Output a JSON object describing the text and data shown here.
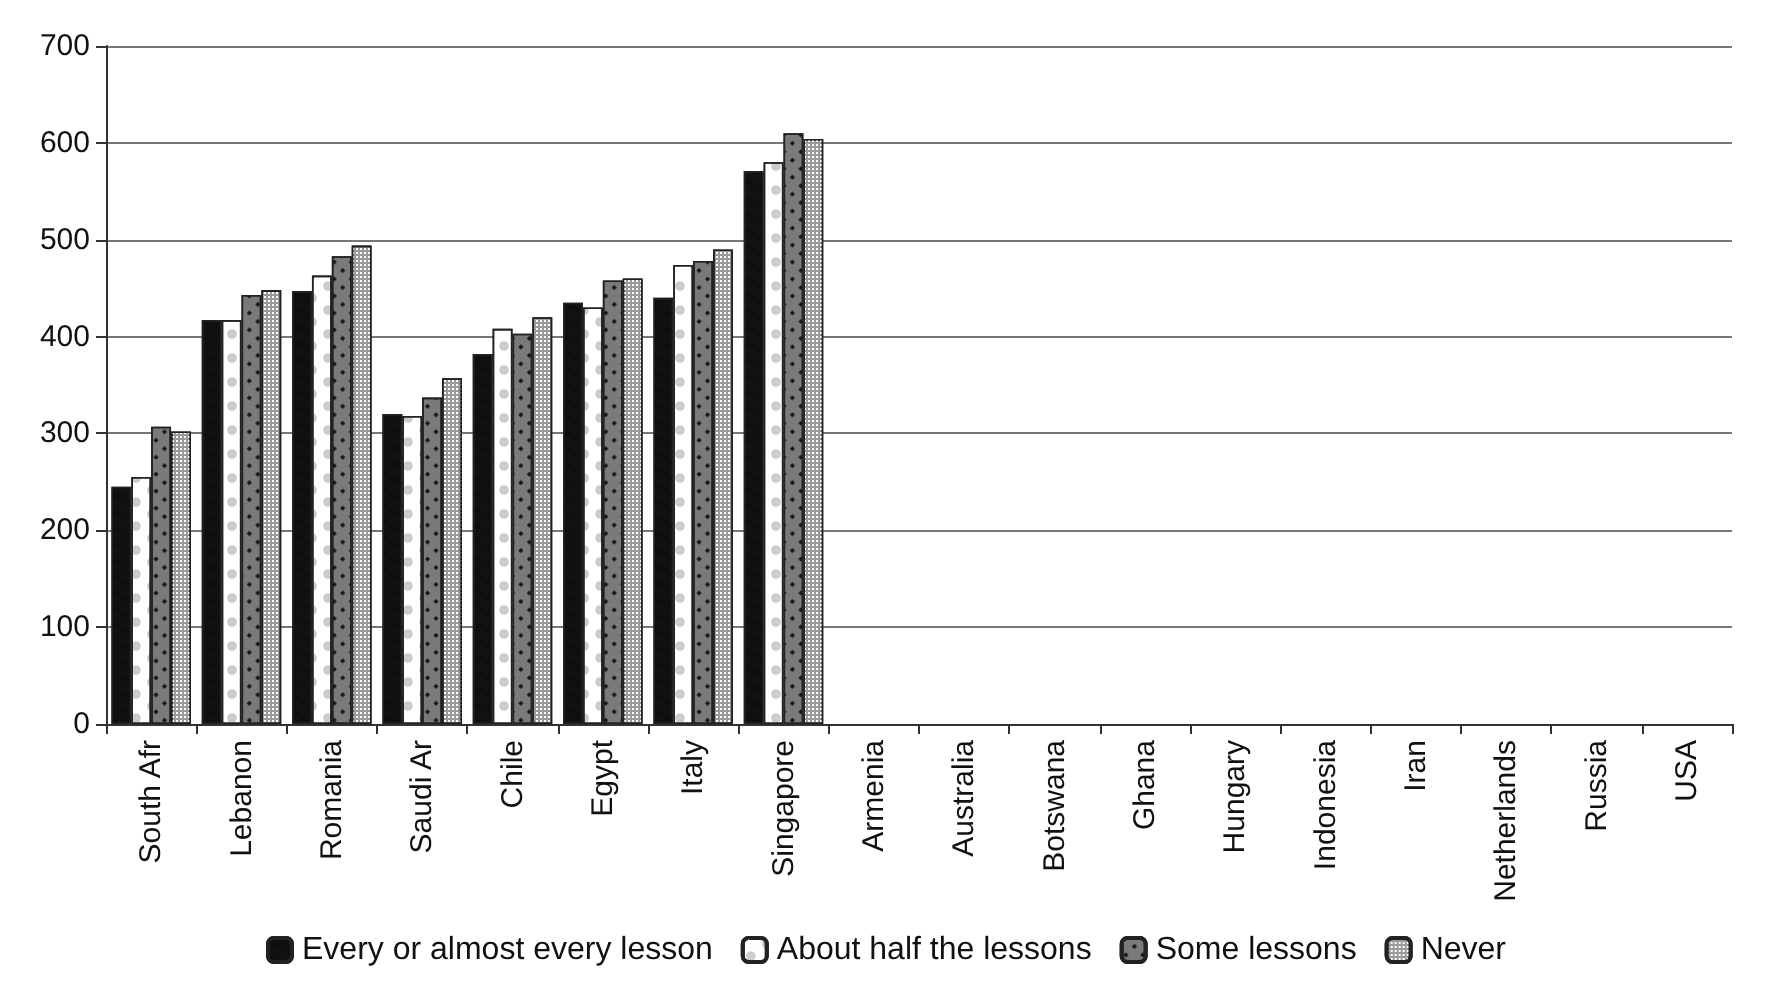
{
  "chart_data": {
    "type": "bar",
    "categories": [
      "South Afr",
      "Lebanon",
      "Romania",
      "Saudi Ar",
      "Chile",
      "Egypt",
      "Italy",
      "Singapore",
      "Armenia",
      "Australia",
      "Botswana",
      "Ghana",
      "Hungary",
      "Indonesia",
      "Iran",
      "Netherlands",
      "Russia",
      "USA"
    ],
    "series": [
      {
        "name": "Every or almost every lesson",
        "color": "#111111",
        "values": [
          245,
          417,
          447,
          320,
          382,
          435,
          440,
          571,
          null,
          null,
          null,
          null,
          null,
          null,
          null,
          null,
          null,
          null
        ]
      },
      {
        "name": "About half the lessons",
        "color": "#ffffff",
        "values": [
          255,
          417,
          463,
          318,
          408,
          430,
          474,
          580,
          null,
          null,
          null,
          null,
          null,
          null,
          null,
          null,
          null,
          null
        ]
      },
      {
        "name": "Some lessons",
        "color": "#7a7a7a",
        "values": [
          307,
          443,
          483,
          337,
          403,
          458,
          478,
          610,
          null,
          null,
          null,
          null,
          null,
          null,
          null,
          null,
          null,
          null
        ]
      },
      {
        "name": "Never",
        "color": "#9a9a9a",
        "values": [
          302,
          448,
          494,
          357,
          420,
          460,
          490,
          604,
          null,
          null,
          null,
          null,
          null,
          null,
          null,
          null,
          null,
          null
        ]
      }
    ],
    "ylim": [
      0,
      700
    ],
    "yticks": [
      0,
      100,
      200,
      300,
      400,
      500,
      600,
      700
    ],
    "grid": "y",
    "legend": "bottom"
  }
}
